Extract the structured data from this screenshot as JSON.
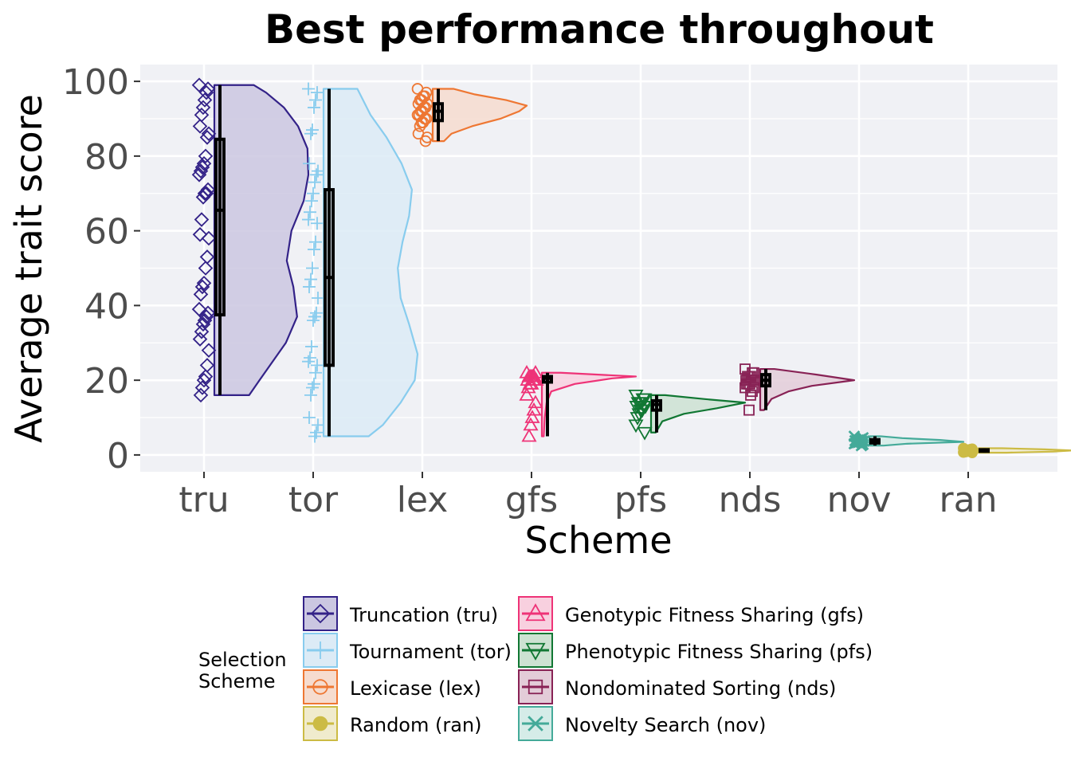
{
  "chart_data": {
    "type": "raincloud",
    "title": "Best performance throughout",
    "xlabel": "Scheme",
    "ylabel": "Average trait score",
    "ylim": [
      -4.5,
      104.5
    ],
    "yticks": [
      0,
      20,
      40,
      60,
      80,
      100
    ],
    "categories": [
      "tru",
      "tor",
      "lex",
      "gfs",
      "pfs",
      "nds",
      "nov",
      "ran"
    ],
    "grid": true,
    "legend": {
      "title_lines": [
        "Selection",
        "Scheme"
      ],
      "position": "bottom",
      "entries": [
        {
          "key": "tru",
          "label": "Truncation (tru)"
        },
        {
          "key": "tor",
          "label": "Tournament (tor)"
        },
        {
          "key": "lex",
          "label": "Lexicase (lex)"
        },
        {
          "key": "ran",
          "label": "Random (ran)"
        },
        {
          "key": "gfs",
          "label": "Genotypic Fitness Sharing (gfs)"
        },
        {
          "key": "pfs",
          "label": "Phenotypic Fitness Sharing (pfs)"
        },
        {
          "key": "nds",
          "label": "Nondominated Sorting (nds)"
        },
        {
          "key": "nov",
          "label": "Novelty Search (nov)"
        }
      ]
    },
    "series": [
      {
        "key": "tru",
        "color": "#332288",
        "fill": "#cbc7e1",
        "shape": "diamond",
        "min": 16,
        "q1": 37.5,
        "median": 65.5,
        "q3": 84.5,
        "max": 99,
        "points": [
          99,
          98,
          97,
          95,
          93,
          91,
          88,
          86,
          85,
          80,
          78,
          77,
          76,
          75,
          71,
          70,
          70,
          69,
          63,
          59,
          58,
          53,
          50,
          46,
          45,
          43,
          39,
          38,
          37,
          36,
          35,
          33,
          31,
          28,
          24,
          21,
          20,
          18,
          16
        ],
        "density": [
          [
            16,
            0.37
          ],
          [
            20,
            0.48
          ],
          [
            30,
            0.76
          ],
          [
            37,
            0.88
          ],
          [
            45,
            0.84
          ],
          [
            52,
            0.77
          ],
          [
            60,
            0.82
          ],
          [
            68,
            0.95
          ],
          [
            75,
            1.0
          ],
          [
            82,
            0.99
          ],
          [
            88,
            0.89
          ],
          [
            93,
            0.74
          ],
          [
            97,
            0.55
          ],
          [
            99,
            0.42
          ]
        ]
      },
      {
        "key": "tor",
        "color": "#88ccee",
        "fill": "#dcebf6",
        "shape": "plus",
        "min": 5,
        "q1": 24,
        "median": 47.5,
        "q3": 71,
        "max": 98,
        "points": [
          98,
          97,
          95,
          93,
          87,
          86,
          78,
          76,
          75,
          73,
          70,
          68,
          65,
          63,
          62,
          57,
          55,
          50,
          47,
          45,
          42,
          38,
          37,
          36,
          29,
          26,
          25,
          24,
          22,
          19,
          18,
          16,
          10,
          8,
          6,
          5
        ],
        "density": [
          [
            5,
            0.48
          ],
          [
            8,
            0.63
          ],
          [
            14,
            0.82
          ],
          [
            20,
            0.97
          ],
          [
            27,
            1.0
          ],
          [
            35,
            0.91
          ],
          [
            42,
            0.82
          ],
          [
            50,
            0.79
          ],
          [
            57,
            0.84
          ],
          [
            64,
            0.91
          ],
          [
            71,
            0.94
          ],
          [
            78,
            0.83
          ],
          [
            85,
            0.67
          ],
          [
            91,
            0.5
          ],
          [
            98,
            0.36
          ]
        ]
      },
      {
        "key": "lex",
        "color": "#ee7733",
        "fill": "#f6dccf",
        "shape": "circle-open",
        "min": 84,
        "q1": 89.5,
        "median": 92,
        "q3": 94,
        "max": 98,
        "points": [
          98,
          97,
          96,
          96,
          95,
          95,
          94,
          94,
          93,
          93,
          92,
          92,
          91,
          91,
          90,
          90,
          89,
          89,
          88,
          86,
          85,
          84
        ],
        "density": [
          [
            84,
            0.12
          ],
          [
            86,
            0.2
          ],
          [
            88,
            0.42
          ],
          [
            90,
            0.72
          ],
          [
            92,
            0.92
          ],
          [
            93.5,
            1.0
          ],
          [
            95,
            0.78
          ],
          [
            96.5,
            0.45
          ],
          [
            98,
            0.22
          ]
        ]
      },
      {
        "key": "gfs",
        "color": "#ee3377",
        "fill": "#f8d0df",
        "shape": "triangle",
        "min": 5,
        "q1": 19.5,
        "median": 20.5,
        "q3": 21,
        "max": 22,
        "points": [
          22,
          22,
          21,
          21,
          21,
          21,
          20,
          20,
          20,
          20,
          19,
          19,
          18,
          16,
          14,
          12,
          10,
          8,
          5
        ],
        "density": [
          [
            5,
            0.02
          ],
          [
            10,
            0.03
          ],
          [
            14,
            0.05
          ],
          [
            17,
            0.1
          ],
          [
            19,
            0.35
          ],
          [
            20.5,
            0.75
          ],
          [
            21,
            1.0
          ],
          [
            21.5,
            0.6
          ],
          [
            22,
            0.2
          ]
        ]
      },
      {
        "key": "pfs",
        "color": "#117733",
        "fill": "#cde2d2",
        "shape": "triangle-down",
        "min": 6,
        "q1": 12,
        "median": 13.5,
        "q3": 14.5,
        "max": 16,
        "points": [
          16,
          15,
          15,
          14,
          14,
          14,
          13,
          13,
          13,
          12,
          12,
          11,
          10,
          8,
          6
        ],
        "density": [
          [
            6,
            0.05
          ],
          [
            9,
            0.12
          ],
          [
            11,
            0.35
          ],
          [
            12.5,
            0.7
          ],
          [
            14,
            1.0
          ],
          [
            15,
            0.55
          ],
          [
            16,
            0.15
          ]
        ]
      },
      {
        "key": "nds",
        "color": "#882255",
        "fill": "#e3ccd8",
        "shape": "square-open",
        "min": 12,
        "q1": 18.5,
        "median": 20,
        "q3": 21.5,
        "max": 23,
        "points": [
          23,
          22,
          22,
          21,
          21,
          21,
          20,
          20,
          20,
          20,
          19,
          19,
          19,
          18,
          18,
          17,
          16,
          12
        ],
        "density": [
          [
            12,
            0.04
          ],
          [
            15,
            0.12
          ],
          [
            17,
            0.3
          ],
          [
            18.5,
            0.55
          ],
          [
            20,
            1.0
          ],
          [
            21.5,
            0.6
          ],
          [
            23,
            0.15
          ]
        ]
      },
      {
        "key": "nov",
        "color": "#44aa99",
        "fill": "#d5ece8",
        "shape": "x",
        "min": 2.5,
        "q1": 3.2,
        "median": 3.7,
        "q3": 4.1,
        "max": 5,
        "points": [
          5,
          4.6,
          4.3,
          4.1,
          4,
          3.9,
          3.8,
          3.7,
          3.6,
          3.5,
          3.4,
          3.3,
          3.2,
          3,
          2.8,
          2.5
        ],
        "density": [
          [
            2.5,
            0.15
          ],
          [
            3,
            0.4
          ],
          [
            3.5,
            1.0
          ],
          [
            4,
            0.75
          ],
          [
            4.5,
            0.35
          ],
          [
            5,
            0.12
          ]
        ]
      },
      {
        "key": "ran",
        "color": "#ccbb44",
        "fill": "#f0ebcd",
        "shape": "circle",
        "min": 0.6,
        "q1": 1,
        "median": 1.2,
        "q3": 1.4,
        "max": 1.8,
        "points": [
          1.8,
          1.6,
          1.5,
          1.4,
          1.3,
          1.2,
          1.2,
          1.1,
          1.1,
          1.0,
          1.0,
          0.9,
          0.8,
          0.7,
          0.6
        ],
        "density": [
          [
            0.6,
            0.3
          ],
          [
            0.9,
            0.8
          ],
          [
            1.2,
            1.0
          ],
          [
            1.5,
            0.7
          ],
          [
            1.8,
            0.25
          ]
        ]
      }
    ]
  }
}
